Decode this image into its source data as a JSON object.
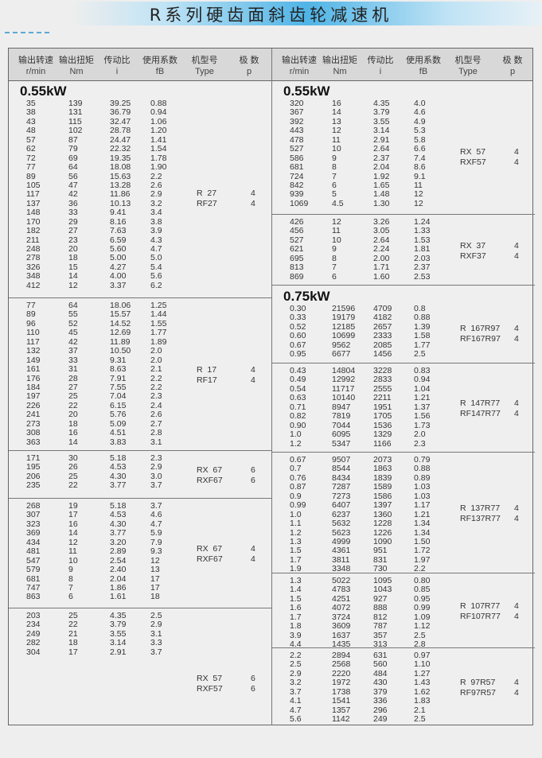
{
  "title": "R系列硬齿面斜齿轮减速机",
  "header": {
    "columns": [
      {
        "cn": "输出转速",
        "unit": "r/min"
      },
      {
        "cn": "输出扭矩",
        "unit": "Nm"
      },
      {
        "cn": "传动比",
        "unit": "i"
      },
      {
        "cn": "使用系数",
        "unit": "fB"
      },
      {
        "cn": "机型号",
        "unit": "Type"
      },
      {
        "cn": "极 数",
        "unit": "p"
      }
    ]
  },
  "left": [
    {
      "kw": "0.55kW",
      "types": [
        "R  27",
        "RF27"
      ],
      "poles": [
        "4",
        "4"
      ],
      "rows": [
        [
          "35",
          "139",
          "39.25",
          "0.88"
        ],
        [
          "38",
          "131",
          "36.79",
          "0.94"
        ],
        [
          "43",
          "115",
          "32.47",
          "1.06"
        ],
        [
          "48",
          "102",
          "28.78",
          "1.20"
        ],
        [
          "57",
          "87",
          "24.47",
          "1.41"
        ],
        [
          "62",
          "79",
          "22.32",
          "1.54"
        ],
        [
          "72",
          "69",
          "19.35",
          "1.78"
        ],
        [
          "77",
          "64",
          "18.08",
          "1.90"
        ],
        [
          "89",
          "56",
          "15.63",
          "2.2"
        ],
        [
          "105",
          "47",
          "13.28",
          "2.6"
        ],
        [
          "117",
          "42",
          "11.86",
          "2.9"
        ],
        [
          "137",
          "36",
          "10.13",
          "3.2"
        ],
        [
          "148",
          "33",
          "9.41",
          "3.4"
        ],
        [
          "170",
          "29",
          "8.16",
          "3.8"
        ],
        [
          "182",
          "27",
          "7.63",
          "3.9"
        ],
        [
          "211",
          "23",
          "6.59",
          "4.3"
        ],
        [
          "248",
          "20",
          "5.60",
          "4.7"
        ],
        [
          "278",
          "18",
          "5.00",
          "5.0"
        ],
        [
          "326",
          "15",
          "4.27",
          "5.4"
        ],
        [
          "348",
          "14",
          "4.00",
          "5.6"
        ],
        [
          "412",
          "12",
          "3.37",
          "6.2"
        ]
      ]
    },
    {
      "types": [
        "R  17",
        "RF17"
      ],
      "poles": [
        "4",
        "4"
      ],
      "rows": [
        [
          "77",
          "64",
          "18.06",
          "1.25"
        ],
        [
          "89",
          "55",
          "15.57",
          "1.44"
        ],
        [
          "96",
          "52",
          "14.52",
          "1.55"
        ],
        [
          "110",
          "45",
          "12.69",
          "1.77"
        ],
        [
          "117",
          "42",
          "11.89",
          "1.89"
        ],
        [
          "132",
          "37",
          "10.50",
          "2.0"
        ],
        [
          "149",
          "33",
          "9.31",
          "2.0"
        ],
        [
          "161",
          "31",
          "8.63",
          "2.1"
        ],
        [
          "176",
          "28",
          "7.91",
          "2.2"
        ],
        [
          "184",
          "27",
          "7.55",
          "2.2"
        ],
        [
          "197",
          "25",
          "7.04",
          "2.3"
        ],
        [
          "226",
          "22",
          "6.15",
          "2.4"
        ],
        [
          "241",
          "20",
          "5.76",
          "2.6"
        ],
        [
          "273",
          "18",
          "5.09",
          "2.7"
        ],
        [
          "308",
          "16",
          "4.51",
          "2.8"
        ],
        [
          "363",
          "14",
          "3.83",
          "3.1"
        ]
      ]
    },
    {
      "types": [
        "RX  67",
        "RXF67"
      ],
      "poles": [
        "6",
        "6"
      ],
      "rows": [
        [
          "171",
          "30",
          "5.18",
          "2.3"
        ],
        [
          "195",
          "26",
          "4.53",
          "2.9"
        ],
        [
          "206",
          "25",
          "4.30",
          "3.0"
        ],
        [
          "235",
          "22",
          "3.77",
          "3.7"
        ]
      ]
    },
    {
      "types": [
        "RX  67",
        "RXF67"
      ],
      "poles": [
        "4",
        "4"
      ],
      "rows": [
        [
          "268",
          "19",
          "5.18",
          "3.7"
        ],
        [
          "307",
          "17",
          "4.53",
          "4.6"
        ],
        [
          "323",
          "16",
          "4.30",
          "4.7"
        ],
        [
          "369",
          "14",
          "3.77",
          "5.9"
        ],
        [
          "434",
          "12",
          "3.20",
          "7.9"
        ],
        [
          "481",
          "11",
          "2.89",
          "9.3"
        ],
        [
          "547",
          "10",
          "2.54",
          "12"
        ],
        [
          "579",
          "9",
          "2.40",
          "13"
        ],
        [
          "681",
          "8",
          "2.04",
          "17"
        ],
        [
          "747",
          "7",
          "1.86",
          "17"
        ],
        [
          "863",
          "6",
          "1.61",
          "18"
        ]
      ]
    },
    {
      "types": [
        "RX  57",
        "RXF57"
      ],
      "poles": [
        "6",
        "6"
      ],
      "rows": [
        [
          "203",
          "25",
          "4.35",
          "2.5"
        ],
        [
          "234",
          "22",
          "3.79",
          "2.9"
        ],
        [
          "249",
          "21",
          "3.55",
          "3.1"
        ],
        [
          "282",
          "18",
          "3.14",
          "3.3"
        ],
        [
          "304",
          "17",
          "2.91",
          "3.7"
        ]
      ]
    }
  ],
  "right": [
    {
      "kw": "0.55kW",
      "types": [
        "RX  57",
        "RXF57"
      ],
      "poles": [
        "4",
        "4"
      ],
      "rows": [
        [
          "320",
          "16",
          "4.35",
          "4.0"
        ],
        [
          "367",
          "14",
          "3.79",
          "4.6"
        ],
        [
          "392",
          "13",
          "3.55",
          "4.9"
        ],
        [
          "443",
          "12",
          "3.14",
          "5.3"
        ],
        [
          "478",
          "11",
          "2.91",
          "5.8"
        ],
        [
          "527",
          "10",
          "2.64",
          "6.6"
        ],
        [
          "586",
          "9",
          "2.37",
          "7.4"
        ],
        [
          "681",
          "8",
          "2.04",
          "8.6"
        ],
        [
          "724",
          "7",
          "1.92",
          "9.1"
        ],
        [
          "842",
          "6",
          "1.65",
          "11"
        ],
        [
          "939",
          "5",
          "1.48",
          "12"
        ],
        [
          "1069",
          "4.5",
          "1.30",
          "12"
        ]
      ]
    },
    {
      "types": [
        "RX  37",
        "RXF37"
      ],
      "poles": [
        "4",
        "4"
      ],
      "rows": [
        [
          "426",
          "12",
          "3.26",
          "1.24"
        ],
        [
          "456",
          "11",
          "3.05",
          "1.33"
        ],
        [
          "527",
          "10",
          "2.64",
          "1.53"
        ],
        [
          "621",
          "9",
          "2.24",
          "1.81"
        ],
        [
          "695",
          "8",
          "2.00",
          "2.03"
        ],
        [
          "813",
          "7",
          "1.71",
          "2.37"
        ],
        [
          "869",
          "6",
          "1.60",
          "2.53"
        ]
      ]
    },
    {
      "kw": "0.75kW",
      "types": [
        "R  167R97",
        "RF167R97"
      ],
      "poles": [
        "4",
        "4"
      ],
      "rows": [
        [
          "0.30",
          "21596",
          "4709",
          "0.8"
        ],
        [
          "0.33",
          "19179",
          "4182",
          "0.88"
        ],
        [
          "0.52",
          "12185",
          "2657",
          "1.39"
        ],
        [
          "0.60",
          "10699",
          "2333",
          "1.58"
        ],
        [
          "0.67",
          "9562",
          "2085",
          "1.77"
        ],
        [
          "0.95",
          "6677",
          "1456",
          "2.5"
        ]
      ]
    },
    {
      "types": [
        "R  147R77",
        "RF147R77"
      ],
      "poles": [
        "4",
        "4"
      ],
      "rows": [
        [
          "0.43",
          "14804",
          "3228",
          "0.83"
        ],
        [
          "0.49",
          "12992",
          "2833",
          "0.94"
        ],
        [
          "0.54",
          "11717",
          "2555",
          "1.04"
        ],
        [
          "0.63",
          "10140",
          "2211",
          "1.21"
        ],
        [
          "0.71",
          "8947",
          "1951",
          "1.37"
        ],
        [
          "0.82",
          "7819",
          "1705",
          "1.56"
        ],
        [
          "0.90",
          "7044",
          "1536",
          "1.73"
        ],
        [
          "1.0",
          "6095",
          "1329",
          "2.0"
        ],
        [
          "1.2",
          "5347",
          "1166",
          "2.3"
        ]
      ]
    },
    {
      "types": [
        "R  137R77",
        "RF137R77"
      ],
      "poles": [
        "4",
        "4"
      ],
      "rows": [
        [
          "0.67",
          "9507",
          "2073",
          "0.79"
        ],
        [
          "0.7",
          "8544",
          "1863",
          "0.88"
        ],
        [
          "0.76",
          "8434",
          "1839",
          "0.89"
        ],
        [
          "0.87",
          "7287",
          "1589",
          "1.03"
        ],
        [
          "0.9",
          "7273",
          "1586",
          "1.03"
        ],
        [
          "0.99",
          "6407",
          "1397",
          "1.17"
        ],
        [
          "1.0",
          "6237",
          "1360",
          "1.21"
        ],
        [
          "1.1",
          "5632",
          "1228",
          "1.34"
        ],
        [
          "1.2",
          "5623",
          "1226",
          "1.34"
        ],
        [
          "1.3",
          "4999",
          "1090",
          "1.50"
        ],
        [
          "1.5",
          "4361",
          "951",
          "1.72"
        ],
        [
          "1.7",
          "3811",
          "831",
          "1.97"
        ],
        [
          "1.9",
          "3348",
          "730",
          "2.2"
        ]
      ]
    },
    {
      "types": [
        "R  107R77",
        "RF107R77"
      ],
      "poles": [
        "4",
        "4"
      ],
      "rows": [
        [
          "1.3",
          "5022",
          "1095",
          "0.80"
        ],
        [
          "1.4",
          "4783",
          "1043",
          "0.85"
        ],
        [
          "1.5",
          "4251",
          "927",
          "0.95"
        ],
        [
          "1.6",
          "4072",
          "888",
          "0.99"
        ],
        [
          "1.7",
          "3724",
          "812",
          "1.09"
        ],
        [
          "1.8",
          "3609",
          "787",
          "1.12"
        ],
        [
          "3.9",
          "1637",
          "357",
          "2.5"
        ],
        [
          "4.4",
          "1435",
          "313",
          "2.8"
        ]
      ]
    },
    {
      "types": [
        "R  97R57",
        "RF97R57"
      ],
      "poles": [
        "4",
        "4"
      ],
      "rows": [
        [
          "2.2",
          "2894",
          "631",
          "0.97"
        ],
        [
          "2.5",
          "2568",
          "560",
          "1.10"
        ],
        [
          "2.9",
          "2220",
          "484",
          "1.27"
        ],
        [
          "3.2",
          "1972",
          "430",
          "1.43"
        ],
        [
          "3.7",
          "1738",
          "379",
          "1.62"
        ],
        [
          "4.1",
          "1541",
          "336",
          "1.83"
        ],
        [
          "4.7",
          "1357",
          "296",
          "2.1"
        ],
        [
          "5.6",
          "1142",
          "249",
          "2.5"
        ]
      ]
    }
  ]
}
